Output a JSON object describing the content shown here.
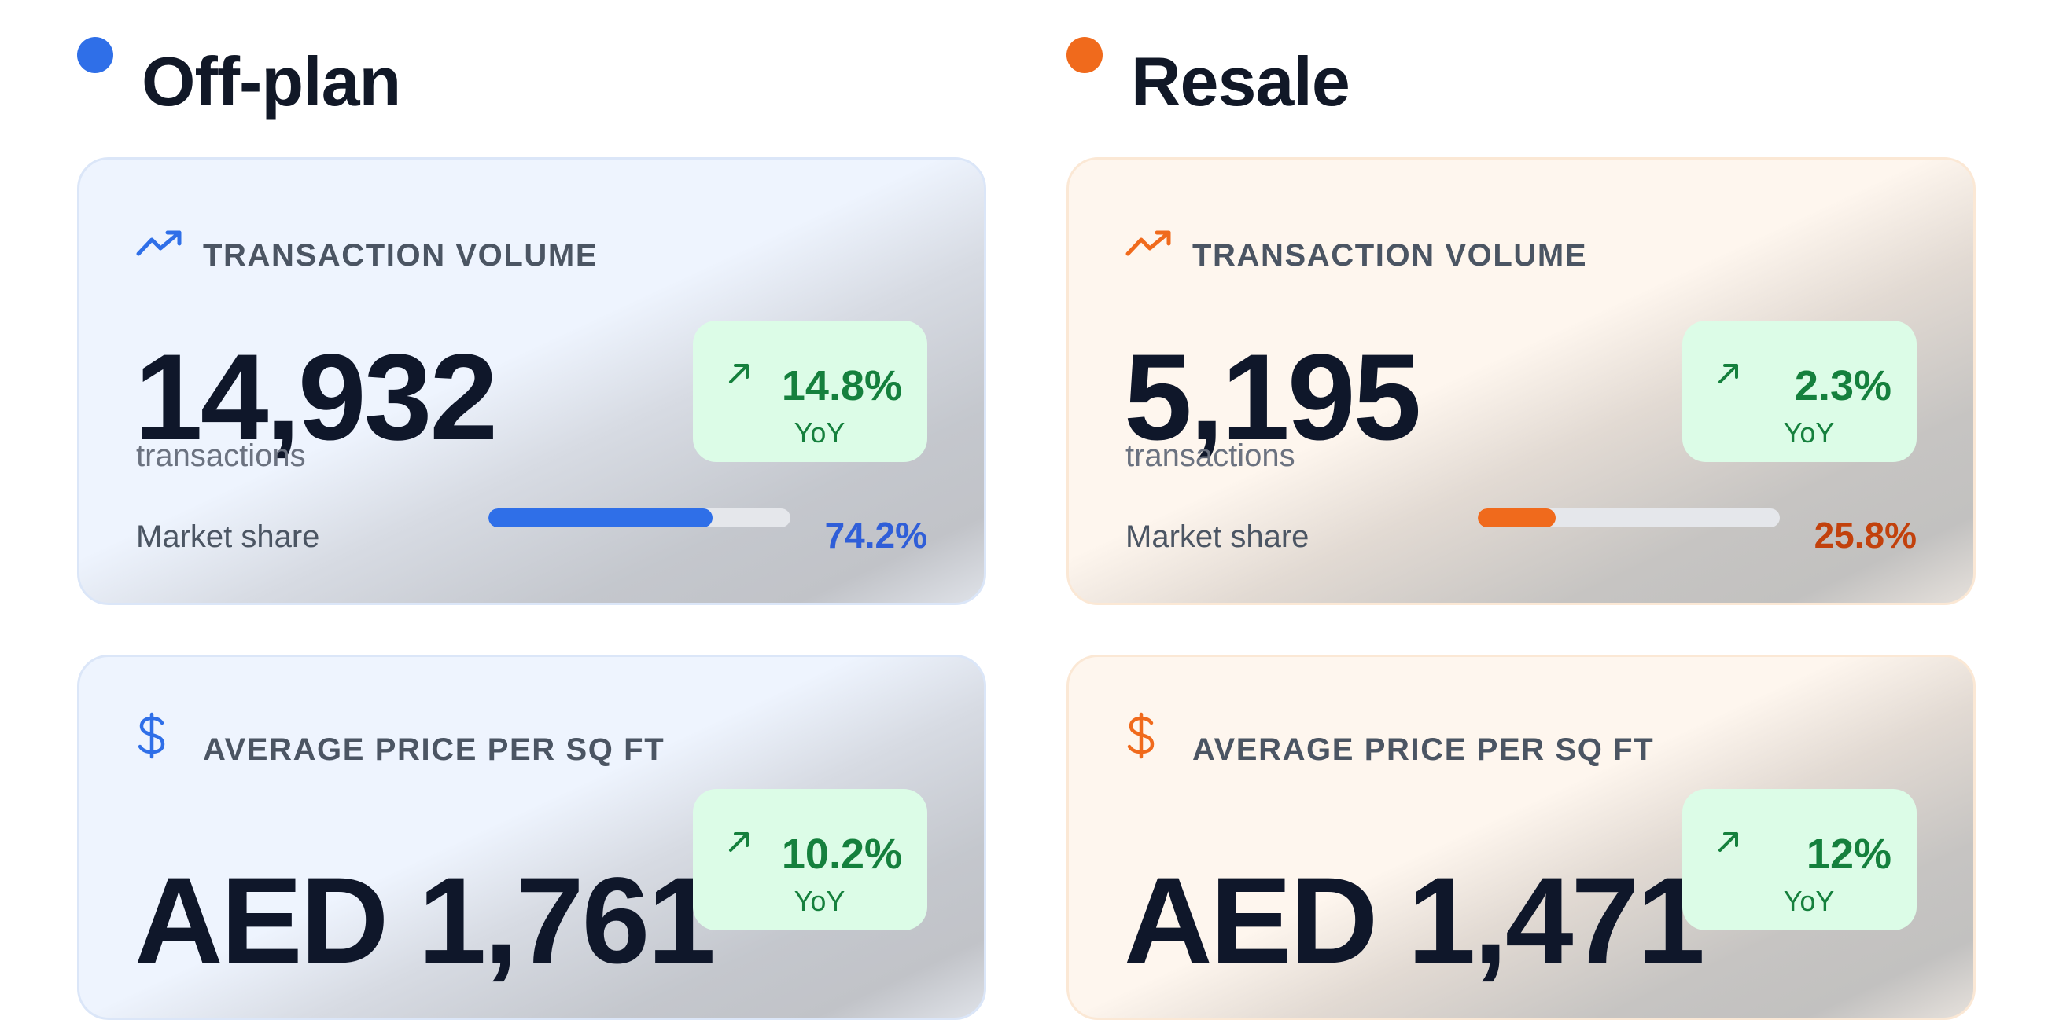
{
  "columns": [
    {
      "title": "Off-plan",
      "accent": "#2f6fe8",
      "value_color": "#2f5ed8",
      "volume": {
        "icon": "trending-up-icon",
        "label": "TRANSACTION VOLUME",
        "value": "14,932",
        "unit": "transactions",
        "yoy": {
          "icon": "arrow-up-right-icon",
          "value": "14.8%",
          "sub": "YoY"
        },
        "market_share": {
          "label": "Market share",
          "value": "74.2%",
          "percent": 74.2
        }
      },
      "price": {
        "icon": "dollar-icon",
        "label": "AVERAGE PRICE PER SQ FT",
        "value": "AED 1,761",
        "yoy": {
          "icon": "arrow-up-right-icon",
          "value": "10.2%",
          "sub": "YoY"
        }
      }
    },
    {
      "title": "Resale",
      "accent": "#f06a1c",
      "value_color": "#c2410c",
      "volume": {
        "icon": "trending-up-icon",
        "label": "TRANSACTION VOLUME",
        "value": "5,195",
        "unit": "transactions",
        "yoy": {
          "icon": "arrow-up-right-icon",
          "value": "2.3%",
          "sub": "YoY"
        },
        "market_share": {
          "label": "Market share",
          "value": "25.8%",
          "percent": 25.8
        }
      },
      "price": {
        "icon": "dollar-icon",
        "label": "AVERAGE PRICE PER SQ FT",
        "value": "AED 1,471",
        "yoy": {
          "icon": "arrow-up-right-icon",
          "value": "12%",
          "sub": "YoY"
        }
      }
    }
  ]
}
